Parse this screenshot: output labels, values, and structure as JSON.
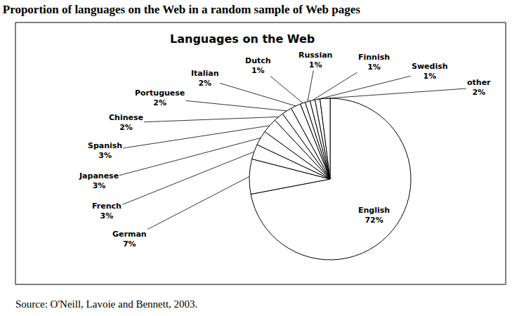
{
  "heading": "Proportion of languages on the Web in a random sample of Web pages",
  "source": "Source: O'Neill, Lavoie and Bennett, 2003.",
  "chart_data": {
    "type": "pie",
    "title": "Languages on the Web",
    "categories": [
      "English",
      "German",
      "French",
      "Japanese",
      "Spanish",
      "Chinese",
      "Portuguese",
      "Italian",
      "Dutch",
      "Russian",
      "Finnish",
      "Swedish",
      "other"
    ],
    "values": [
      72,
      7,
      3,
      3,
      3,
      2,
      2,
      2,
      1,
      1,
      1,
      1,
      2
    ],
    "value_labels": [
      "72%",
      "7%",
      "3%",
      "3%",
      "3%",
      "2%",
      "2%",
      "2%",
      "1%",
      "1%",
      "1%",
      "1%",
      "2%"
    ],
    "color": "#ffffff",
    "data_labels": true
  }
}
